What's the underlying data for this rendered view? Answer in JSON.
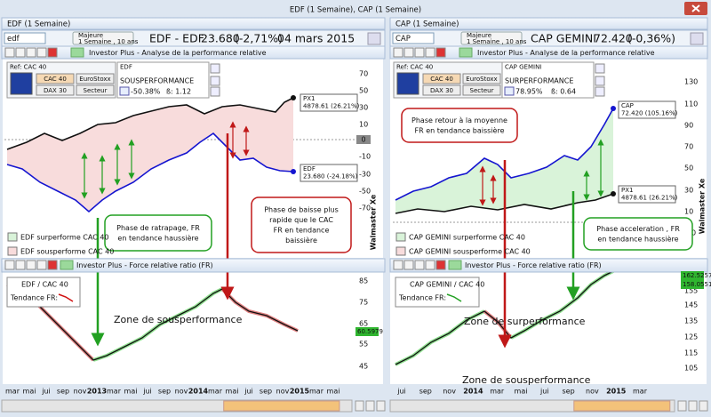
{
  "window": {
    "title": "EDF (1 Semaine), CAP (1 Semaine)"
  },
  "panels": [
    {
      "tab": "EDF (1 Semaine)",
      "search": "edf",
      "period": [
        "Majeure",
        "1 Semaine , 10 ans"
      ],
      "name": "EDF - EDF",
      "price": "23.680",
      "change": "(-2,71%)",
      "date": "04 mars 2015",
      "toolbar": "Investor Plus - Analyse de la performance relative",
      "ref": {
        "label": "Ref: CAC 40",
        "buttons": [
          "CAC 40",
          "EuroStoxx",
          "DAX 30",
          "Secteur"
        ]
      },
      "stock": {
        "name": "EDF",
        "status": "SOUSPERFORMANCE",
        "perf": "-50.38%",
        "beta": "ß: 1.12"
      },
      "upper_yticks": [
        70,
        50,
        30,
        10,
        -10,
        -30,
        -50,
        -70
      ],
      "upper_zero_tag": "0",
      "tags": [
        {
          "title": "PX1",
          "value": "4878.61 (26.21%)"
        },
        {
          "title": "EDF",
          "value": "23.680 (-24.18%)"
        }
      ],
      "annotations": [
        [
          "Phase de ratrapage, FR",
          "en tendance haussière"
        ],
        [
          "Phase de baisse plus",
          "rapide que le CAC",
          "FR en tendance",
          "baissière"
        ]
      ],
      "legend": [
        "EDF surperforme  CAC 40",
        "EDF sousperforme CAC 40"
      ],
      "watermark": "Walmaster Xe",
      "lower_toolbar": "Investor Plus - Force relative ratio  (FR)",
      "ratio_label": "EDF / CAC 40",
      "trend_label": "Tendance FR:",
      "lower_yticks": [
        85,
        75,
        65,
        55,
        45
      ],
      "lower_tags": [
        "60.5979"
      ],
      "zones": [
        "Zone de sousperformance"
      ],
      "xticks": [
        "mar",
        "mai",
        "jui",
        "sep",
        "nov",
        "2013",
        "mar",
        "mai",
        "jui",
        "sep",
        "nov",
        "2014",
        "mar",
        "mai",
        "jui",
        "sep",
        "nov",
        "2015",
        "mar",
        "mai"
      ]
    },
    {
      "tab": "CAP (1 Semaine)",
      "search": "CAP",
      "period": [
        "Majeure",
        "1 Semaine , 10 ans"
      ],
      "name": "CAP GEMINI",
      "price": "72.420",
      "change": "(-0,36%)",
      "toolbar": "Investor Plus - Analyse de la performance relative",
      "ref": {
        "label": "Ref: CAC 40",
        "buttons": [
          "CAC 40",
          "EuroStoxx",
          "DAX 30",
          "Secteur"
        ]
      },
      "stock": {
        "name": "CAP GEMINI",
        "status": "SURPERFORMANCE",
        "perf": "78.95%",
        "beta": "ß: 0.64"
      },
      "upper_yticks": [
        130,
        110,
        90,
        70,
        50,
        30,
        10,
        -10
      ],
      "tags": [
        {
          "title": "CAP",
          "value": "72.420 (105.16%)"
        },
        {
          "title": "PX1",
          "value": "4878.61 (26.21%)"
        }
      ],
      "annotations": [
        [
          "Phase retour à la moyenne",
          "FR en tendance baissière"
        ],
        [
          "Phase acceleration , FR",
          "en tendance haussière"
        ]
      ],
      "legend": [
        "CAP GEMINI surperforme  CAC 40",
        "CAP GEMINI sousperforme CAC 40"
      ],
      "watermark": "Walmaster Xe",
      "lower_toolbar": "Investor Plus - Force relative ratio  (FR)",
      "ratio_label": "CAP GEMINI / CAC 40",
      "trend_label": "Tendance FR:",
      "lower_yticks": [
        165,
        155,
        145,
        135,
        125,
        115,
        105
      ],
      "lower_tags": [
        "162.5257",
        "158.0551"
      ],
      "zones": [
        "Zone de surperformance",
        "Zone de sousperformance"
      ],
      "xticks": [
        "jui",
        "sep",
        "nov",
        "2014",
        "mar",
        "mai",
        "jui",
        "sep",
        "nov",
        "2015",
        "mar"
      ]
    }
  ]
}
